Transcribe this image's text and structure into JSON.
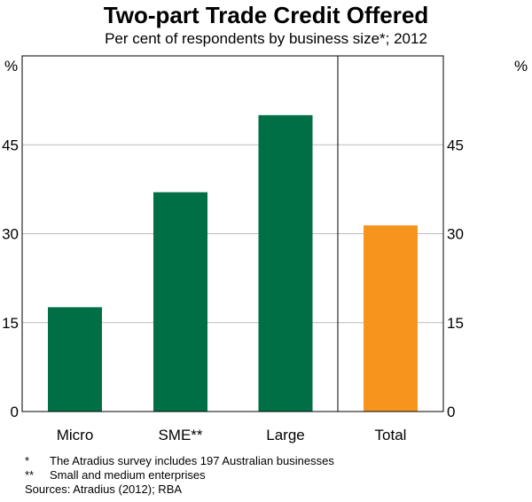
{
  "chart_data": {
    "type": "bar",
    "title": "Two-part Trade Credit Offered",
    "subtitle": "Per cent of respondents by business size*; 2012",
    "categories": [
      "Micro",
      "SME**",
      "Large",
      "Total"
    ],
    "values": [
      17.6,
      37.0,
      50.0,
      31.4
    ],
    "colors": [
      "#006f46",
      "#006f46",
      "#006f46",
      "#f7941d"
    ],
    "ylabel_left": "%",
    "ylabel_right": "%",
    "ylim": [
      0,
      60
    ],
    "yticks": [
      "0",
      "15",
      "30",
      "45"
    ],
    "grid": true
  },
  "notes": [
    {
      "mark": "*",
      "text": "The Atradius survey includes 197 Australian businesses"
    },
    {
      "mark": "**",
      "text": "Small and medium enterprises"
    }
  ],
  "sources": "Sources: Atradius (2012); RBA"
}
